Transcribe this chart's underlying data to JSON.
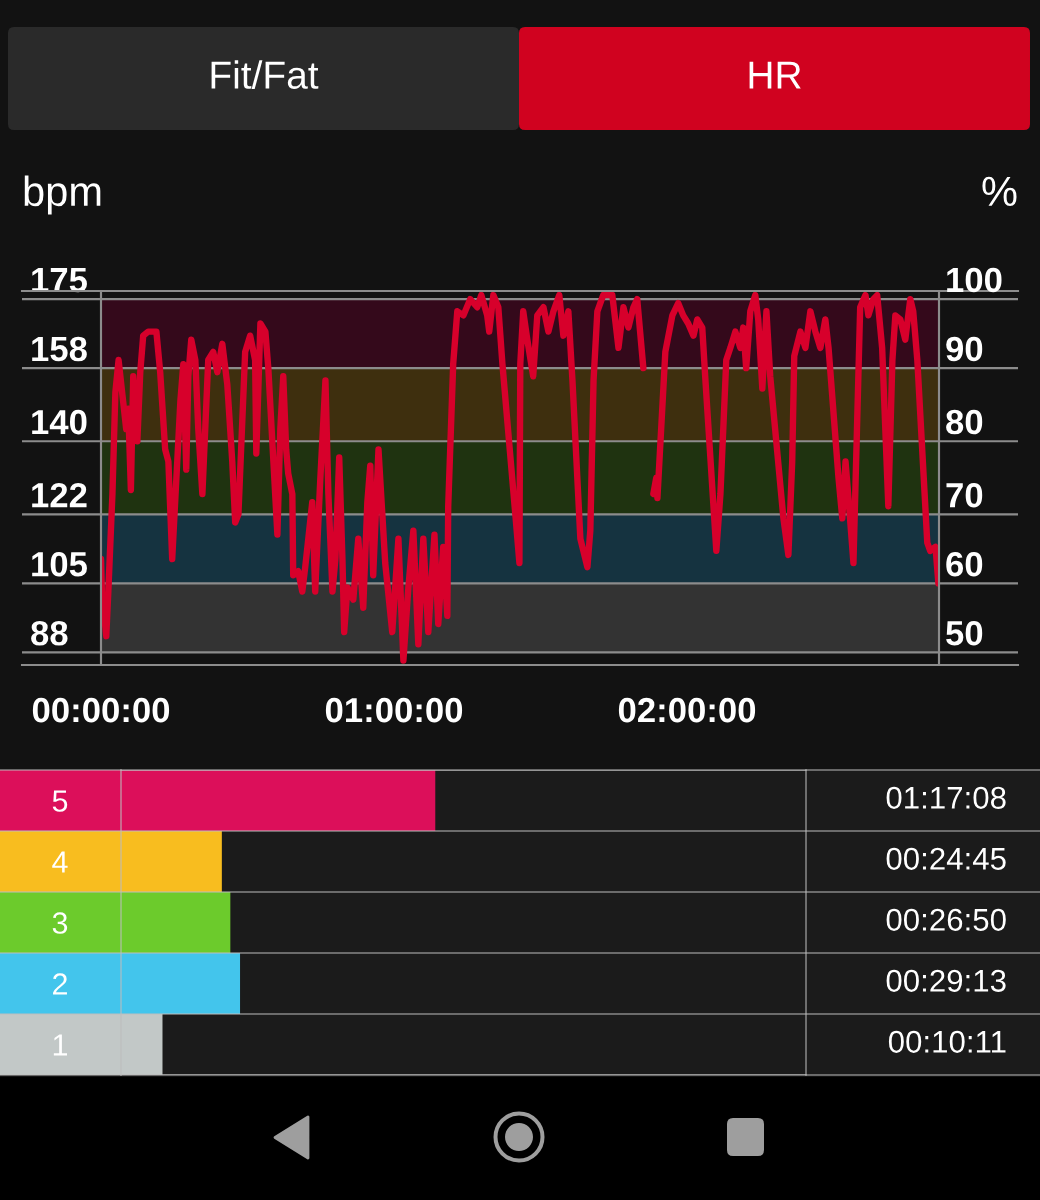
{
  "chart_data": [
    {
      "type": "other",
      "annotations": [
        "Fit/Fat",
        "HR"
      ],
      "colors": [
        "#2a2a2a",
        "#d0021f"
      ]
    },
    {
      "type": "line",
      "ylabel": "bpm",
      "y2label": "%",
      "color": "#d7002b",
      "x": [
        0.0,
        0.003,
        0.018,
        0.025,
        0.039,
        0.049,
        0.06,
        0.086,
        0.093,
        0.102,
        0.11,
        0.124,
        0.134,
        0.144,
        0.161,
        0.189,
        0.202,
        0.219,
        0.23,
        0.243,
        0.271,
        0.281,
        0.291,
        0.298,
        0.308,
        0.322,
        0.332,
        0.346,
        0.366,
        0.383,
        0.397,
        0.414,
        0.431,
        0.448,
        0.458,
        0.469,
        0.492,
        0.509,
        0.526,
        0.53,
        0.544,
        0.561,
        0.571,
        0.602,
        0.612,
        0.622,
        0.632,
        0.639,
        0.653,
        0.656,
        0.673,
        0.687,
        0.697,
        0.721,
        0.731,
        0.748,
        0.766,
        0.776,
        0.79,
        0.8,
        0.813,
        0.824,
        0.83,
        0.841,
        0.861,
        0.878,
        0.895,
        0.909,
        0.919,
        0.929,
        0.947,
        0.97,
        0.994,
        1.015,
        1.032,
        1.049,
        1.066,
        1.083,
        1.1,
        1.117,
        1.138,
        1.151,
        1.168,
        1.182,
        1.185,
        1.202,
        1.216,
        1.237,
        1.26,
        1.284,
        1.298,
        1.318,
        1.325,
        1.339,
        1.356,
        1.37,
        1.414,
        1.428,
        1.431,
        1.441,
        1.455,
        1.475,
        1.489,
        1.51,
        1.527,
        1.544,
        1.564,
        1.578,
        1.595,
        1.609,
        1.636,
        1.66,
        1.67,
        1.681,
        1.694,
        1.714,
        1.745,
        1.766,
        1.783,
        1.8,
        1.817,
        1.83,
        1.851,
        1.868,
        1.885,
        1.895,
        1.899,
        1.926,
        1.95,
        1.97,
        1.987,
        2.004,
        2.022,
        2.035,
        2.052,
        2.062,
        2.1,
        2.114,
        2.134,
        2.148,
        2.165,
        2.182,
        2.192,
        2.202,
        2.216,
        2.233,
        2.243,
        2.257,
        2.271,
        2.284,
        2.329,
        2.346,
        2.359,
        2.366,
        2.387,
        2.404,
        2.421,
        2.438,
        2.455,
        2.472,
        2.483,
        2.517,
        2.53,
        2.541,
        2.551,
        2.568,
        2.591,
        2.609,
        2.619,
        2.636,
        2.649,
        2.666,
        2.687,
        2.701,
        2.711,
        2.728,
        2.745,
        2.762,
        2.772,
        2.786,
        2.82,
        2.83,
        2.848,
        2.858
      ],
      "values": [
        111,
        103,
        92,
        103,
        127,
        152,
        160,
        143,
        148,
        128,
        156,
        140,
        157,
        166,
        167,
        167,
        157,
        138,
        135,
        111,
        150,
        159,
        133,
        156,
        165,
        160,
        143,
        127,
        160,
        162,
        157,
        164,
        154,
        135,
        120,
        122,
        162,
        166,
        160,
        137,
        169,
        167,
        158,
        117,
        143,
        156,
        138,
        132,
        127,
        107,
        108,
        103,
        109,
        125,
        103,
        130,
        155,
        127,
        103,
        111,
        136,
        111,
        93,
        104,
        101,
        116,
        99,
        125,
        134,
        107,
        138,
        110,
        93,
        116,
        86,
        104,
        118,
        90,
        116,
        93,
        117,
        95,
        114,
        97,
        124,
        159,
        172,
        171,
        175,
        173,
        176,
        171,
        167,
        176,
        173,
        159,
        122,
        110,
        159,
        172,
        165,
        156,
        171,
        173,
        167,
        172,
        176,
        166,
        172,
        155,
        116,
        109,
        118,
        155,
        172,
        176,
        176,
        163,
        173,
        168,
        173,
        175,
        158,
        null,
        127,
        131,
        126,
        162,
        171,
        174,
        171,
        169,
        166,
        170,
        168,
        156,
        113,
        127,
        160,
        163,
        167,
        163,
        168,
        158,
        172,
        176,
        170,
        153,
        172,
        156,
        121,
        112,
        135,
        161,
        167,
        163,
        172,
        167,
        163,
        170,
        163,
        131,
        121,
        135,
        126,
        110,
        173,
        176,
        171,
        175,
        176,
        163,
        124,
        160,
        171,
        170,
        165,
        175,
        172,
        160,
        115,
        113,
        114,
        105
      ],
      "xlim": [
        0,
        2.86
      ],
      "xticks": [
        {
          "value": 0,
          "label": "00:00:00"
        },
        {
          "value": 1,
          "label": "01:00:00"
        },
        {
          "value": 2,
          "label": "02:00:00"
        }
      ],
      "ylim": [
        84.9,
        177
      ],
      "yticks": [
        88,
        105,
        122,
        140,
        158,
        175
      ],
      "y2lim": [
        48.51,
        101.14
      ],
      "y2ticks": [
        {
          "value": 50.29,
          "label": "50"
        },
        60,
        {
          "value": 69.71,
          "label": "70"
        },
        80,
        {
          "value": 90.29,
          "label": "90"
        },
        100
      ],
      "grid": "y",
      "bands": [
        {
          "axis": "y",
          "from": 88,
          "to": 105,
          "color": "#333333"
        },
        {
          "axis": "y",
          "from": 105,
          "to": 122,
          "color": "#153340"
        },
        {
          "axis": "y",
          "from": 122,
          "to": 140,
          "color": "#1f3310"
        },
        {
          "axis": "y",
          "from": 140,
          "to": 158,
          "color": "#3e2f0e"
        },
        {
          "axis": "y",
          "from": 158,
          "to": 175,
          "color": "#34091b"
        }
      ]
    },
    {
      "type": "bar",
      "orientation": "horizontal",
      "categories": [
        "5",
        "4",
        "3",
        "2",
        "1"
      ],
      "values": [
        4628,
        1485,
        1610,
        1753,
        611
      ],
      "colors": [
        "#dc0f5a",
        "#f8bd1f",
        "#6ccb2c",
        "#43c5ec",
        "#c2c8c7"
      ],
      "value_labels": [
        "01:17:08",
        "00:24:45",
        "00:26:50",
        "00:29:13",
        "00:10:11"
      ],
      "grid": "y",
      "tick_labels": "y"
    }
  ]
}
